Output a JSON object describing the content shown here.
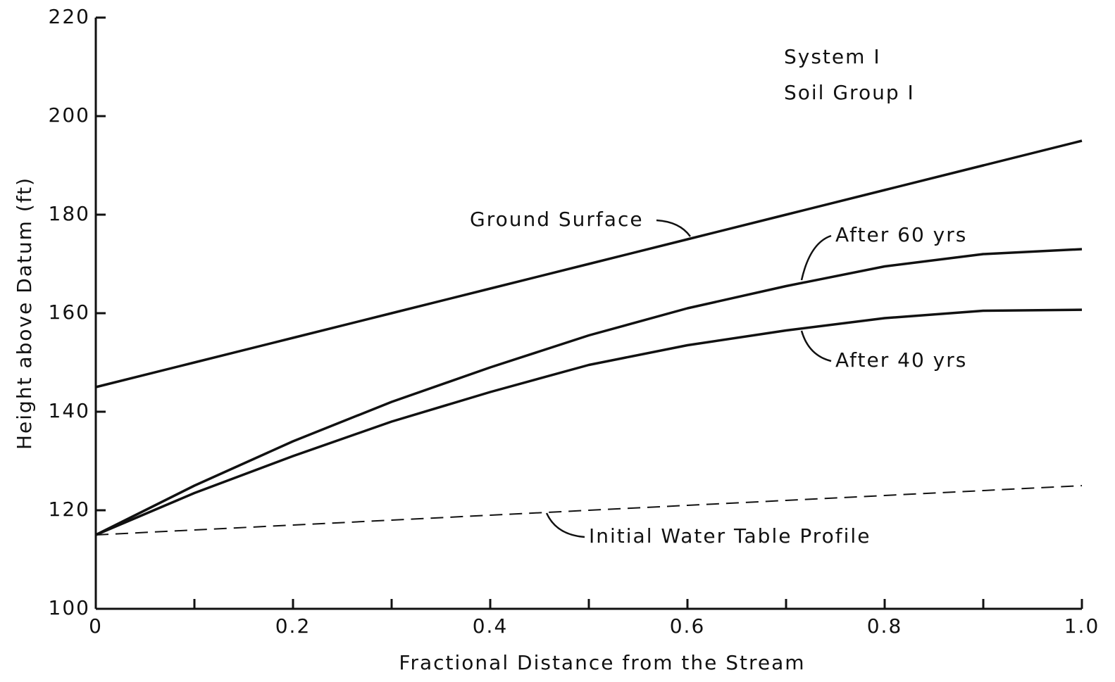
{
  "chart_data": {
    "type": "line",
    "xlabel": "Fractional Distance from the Stream",
    "ylabel": "Height above Datum (ft)",
    "annotations": [
      "System I",
      "Soil Group I"
    ],
    "x": [
      0,
      0.1,
      0.2,
      0.3,
      0.4,
      0.5,
      0.6,
      0.7,
      0.8,
      0.9,
      1.0
    ],
    "series": [
      {
        "name": "Ground Surface",
        "color": "#111111",
        "dashed": false,
        "values": [
          145,
          150,
          155,
          160,
          165,
          170,
          175,
          180,
          185,
          190,
          195
        ]
      },
      {
        "name": "After 60 yrs",
        "color": "#111111",
        "dashed": false,
        "values": [
          115,
          125,
          134,
          142,
          149,
          155.5,
          161,
          165.5,
          169.5,
          172,
          173
        ]
      },
      {
        "name": "After 40 yrs",
        "color": "#111111",
        "dashed": false,
        "values": [
          115,
          123.5,
          131,
          138,
          144,
          149.5,
          153.5,
          156.5,
          159,
          160.5,
          160.7
        ]
      },
      {
        "name": "Initial Water Table Profile",
        "color": "#111111",
        "dashed": true,
        "values": [
          115,
          116,
          117,
          118,
          119,
          120,
          121,
          122,
          123,
          124,
          125
        ]
      }
    ],
    "xlim": [
      0,
      1
    ],
    "ylim": [
      100,
      220
    ],
    "xticks": [
      0,
      0.2,
      0.4,
      0.6,
      0.8,
      {
        "value": 1,
        "label": "1.0"
      }
    ],
    "minor_xticks": [
      0.1,
      0.3,
      0.5,
      0.7,
      0.9
    ],
    "yticks": [
      100,
      120,
      140,
      160,
      180,
      200,
      220
    ],
    "grid": false
  }
}
